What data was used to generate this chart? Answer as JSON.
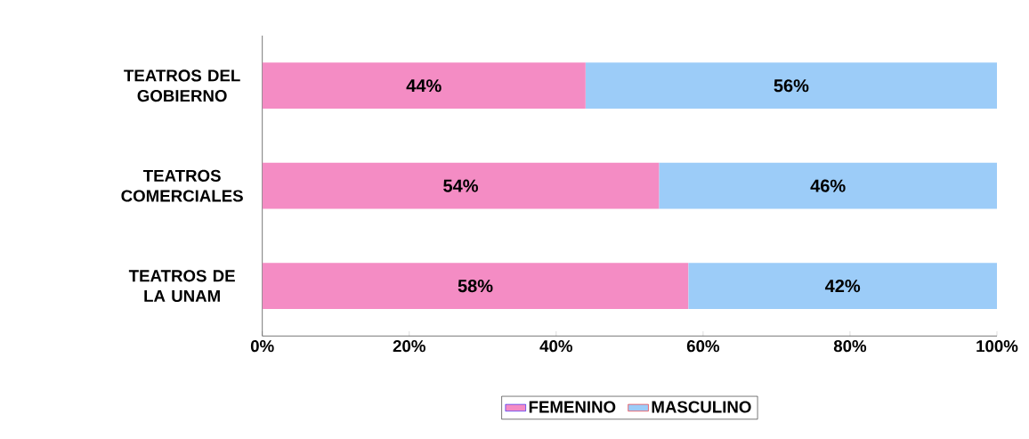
{
  "chart_data": {
    "type": "bar",
    "orientation": "horizontal",
    "stacked": true,
    "categories": [
      "TEATROS DEL GOBIERNO",
      "TEATROS COMERCIALES",
      "TEATROS DE LA UNAM"
    ],
    "series": [
      {
        "name": "FEMENINO",
        "color": "#f48cc4",
        "values": [
          44,
          54,
          58
        ],
        "value_labels": [
          "44%",
          "54%",
          "58%"
        ]
      },
      {
        "name": "MASCULINO",
        "color": "#9cccf8",
        "values": [
          56,
          46,
          42
        ],
        "value_labels": [
          "56%",
          "46%",
          "42%"
        ]
      }
    ],
    "xlim": [
      0,
      100
    ],
    "xticks": [
      {
        "value": 0,
        "label": "0%"
      },
      {
        "value": 20,
        "label": "20%"
      },
      {
        "value": 40,
        "label": "40%"
      },
      {
        "value": 60,
        "label": "60%"
      },
      {
        "value": 80,
        "label": "80%"
      },
      {
        "value": 100,
        "label": "100%"
      }
    ],
    "legend": "bottom"
  }
}
